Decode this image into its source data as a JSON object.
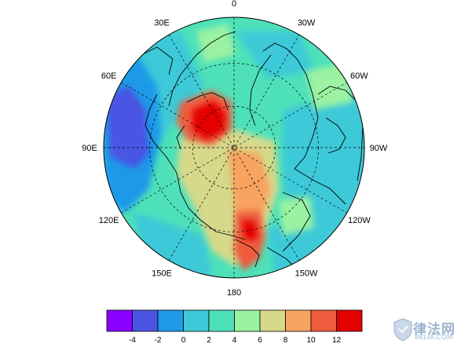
{
  "map": {
    "projection": "north polar stereographic",
    "center_label": "",
    "longitude_labels": [
      {
        "key": "lon-0",
        "text": "0",
        "lon": 0
      },
      {
        "key": "lon-30w",
        "text": "30W",
        "lon": -30
      },
      {
        "key": "lon-60w",
        "text": "60W",
        "lon": -60
      },
      {
        "key": "lon-90w",
        "text": "90W",
        "lon": -90
      },
      {
        "key": "lon-120w",
        "text": "120W",
        "lon": -120
      },
      {
        "key": "lon-150w",
        "text": "150W",
        "lon": -150
      },
      {
        "key": "lon-180",
        "text": "180",
        "lon": 180
      },
      {
        "key": "lon-150e",
        "text": "150E",
        "lon": 150
      },
      {
        "key": "lon-120e",
        "text": "120E",
        "lon": 120
      },
      {
        "key": "lon-90e",
        "text": "90E",
        "lon": 90
      },
      {
        "key": "lon-60e",
        "text": "60E",
        "lon": 60
      },
      {
        "key": "lon-30e",
        "text": "30E",
        "lon": 30
      }
    ],
    "latitude_circles": [
      60,
      75
    ],
    "background_level": "2 to 4",
    "features": [
      {
        "name": "max-warm-anomaly",
        "region": "Kara / Barents Sea",
        "value_range": "10 to 12"
      },
      {
        "name": "secondary-warm-anomaly",
        "region": "Chukchi / East Siberian Sea",
        "value_range": "8 to 10"
      },
      {
        "name": "cool-anomaly",
        "region": "West Siberia (60E-90E)",
        "value_range": "-4 to -2"
      }
    ]
  },
  "colorbar": {
    "levels": [
      "-4",
      "-2",
      "0",
      "2",
      "4",
      "6",
      "8",
      "10",
      "12"
    ],
    "colors": [
      "#8A00FF",
      "#4A55E3",
      "#1E9AE8",
      "#3EC9D8",
      "#4EE1B9",
      "#9AF2A2",
      "#D6D98A",
      "#F8A35F",
      "#EE5C3E",
      "#E50000"
    ]
  },
  "watermark": {
    "title": "律法网",
    "url": "88148.COM"
  }
}
